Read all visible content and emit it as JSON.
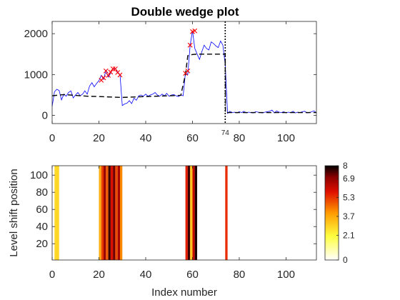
{
  "chart_data": [
    {
      "type": "line",
      "title": "Double wedge plot",
      "xlabel": "",
      "ylabel": "",
      "xlim": [
        0,
        113
      ],
      "ylim": [
        -200,
        2300
      ],
      "xticks": [
        "0",
        "20",
        "40",
        "60",
        "80",
        "100"
      ],
      "yticks": [
        "0",
        "1000",
        "2000"
      ],
      "change_point": {
        "x": 74,
        "label": "74"
      },
      "series": [
        {
          "style": "blue-line",
          "color": "#0000ff",
          "x": [
            0,
            1,
            2,
            3,
            4,
            5,
            6,
            7,
            8,
            9,
            10,
            11,
            12,
            13,
            14,
            15,
            16,
            17,
            18,
            19,
            20,
            21,
            22,
            23,
            24,
            25,
            26,
            27,
            28,
            29,
            30,
            31,
            32,
            33,
            34,
            35,
            36,
            37,
            38,
            39,
            40,
            41,
            42,
            43,
            44,
            45,
            46,
            47,
            48,
            49,
            50,
            51,
            52,
            53,
            54,
            55,
            56,
            57,
            58,
            59,
            60,
            61,
            62,
            63,
            64,
            65,
            66,
            67,
            68,
            69,
            70,
            71,
            72,
            73,
            74,
            75,
            76,
            77,
            78,
            79,
            80,
            81,
            82,
            83,
            84,
            85,
            86,
            87,
            88,
            89,
            90,
            91,
            92,
            93,
            94,
            95,
            96,
            97,
            98,
            99,
            100,
            101,
            102,
            103,
            104,
            105,
            106,
            107,
            108,
            109,
            110,
            111,
            112,
            113
          ],
          "values": [
            220,
            580,
            640,
            610,
            380,
            520,
            470,
            560,
            600,
            430,
            500,
            560,
            480,
            520,
            600,
            520,
            720,
            800,
            700,
            780,
            850,
            980,
            880,
            1100,
            940,
            1030,
            1140,
            1150,
            1060,
            1000,
            240,
            280,
            300,
            360,
            290,
            420,
            370,
            480,
            500,
            470,
            520,
            470,
            500,
            520,
            560,
            500,
            470,
            520,
            480,
            540,
            470,
            500,
            510,
            480,
            460,
            500,
            480,
            1040,
            1000,
            1720,
            2070,
            1640,
            1500,
            1370,
            1560,
            1720,
            1640,
            1600,
            1800,
            1760,
            1700,
            1660,
            1820,
            1720,
            1250,
            50,
            100,
            70,
            80,
            60,
            90,
            70,
            100,
            60,
            80,
            70,
            60,
            90,
            80,
            70,
            60,
            80,
            90,
            100,
            130,
            60,
            110,
            80,
            70,
            90,
            60,
            80,
            70,
            100,
            60,
            80,
            70,
            90,
            100,
            60,
            70,
            90,
            110,
            60
          ]
        },
        {
          "style": "black-dashed",
          "color": "#000000",
          "x": [
            0,
            5,
            10,
            15,
            20,
            25,
            30,
            35,
            40,
            45,
            50,
            55,
            57,
            58,
            60,
            62,
            65,
            70,
            74,
            74.1,
            75,
            80,
            85,
            90,
            95,
            100,
            105,
            110,
            113
          ],
          "values": [
            480,
            510,
            490,
            470,
            460,
            450,
            440,
            450,
            460,
            470,
            480,
            490,
            1000,
            1460,
            1490,
            1500,
            1500,
            1500,
            1500,
            60,
            70,
            70,
            70,
            70,
            70,
            70,
            70,
            70,
            70
          ]
        },
        {
          "style": "red-x-markers",
          "color": "#ff0000",
          "x": [
            21,
            22,
            23,
            24,
            25,
            26,
            27,
            28,
            29,
            57,
            58,
            59,
            60,
            61
          ],
          "values": [
            860,
            920,
            1090,
            980,
            1060,
            1140,
            1140,
            1050,
            990,
            1030,
            1090,
            1720,
            2050,
            2070
          ]
        }
      ]
    },
    {
      "type": "heatmap",
      "title": "",
      "xlabel": "Index number",
      "ylabel": "Level shift position",
      "xlim": [
        0,
        113
      ],
      "ylim": [
        1,
        111
      ],
      "xticks": [
        "0",
        "20",
        "40",
        "60",
        "80",
        "100"
      ],
      "yticks": [
        "20",
        "40",
        "60",
        "80",
        "100"
      ],
      "colorbar": {
        "min": 0,
        "max": 8,
        "ticks": [
          "8",
          "6.9",
          "5.3",
          "3.7",
          "2.1",
          "0"
        ],
        "colormap": "hot-reversed"
      },
      "columns": [
        {
          "x0": 1,
          "x1": 3,
          "value": 2.8
        },
        {
          "x0": 20,
          "x1": 21,
          "value": 3.6
        },
        {
          "x0": 21,
          "x1": 22,
          "value": 5.2
        },
        {
          "x0": 22,
          "x1": 23,
          "value": 6.8
        },
        {
          "x0": 23,
          "x1": 24,
          "value": 4.8
        },
        {
          "x0": 24,
          "x1": 25,
          "value": 7.6
        },
        {
          "x0": 25,
          "x1": 26,
          "value": 5.8
        },
        {
          "x0": 26,
          "x1": 27,
          "value": 7.2
        },
        {
          "x0": 27,
          "x1": 28,
          "value": 5.0
        },
        {
          "x0": 28,
          "x1": 29,
          "value": 6.6
        },
        {
          "x0": 29,
          "x1": 30,
          "value": 4.2
        },
        {
          "x0": 57,
          "x1": 58,
          "value": 5.6
        },
        {
          "x0": 58,
          "x1": 59,
          "value": 7.6
        },
        {
          "x0": 59,
          "x1": 60,
          "value": 3.2
        },
        {
          "x0": 60,
          "x1": 61,
          "value": 6.2
        },
        {
          "x0": 61,
          "x1": 62,
          "value": 7.8
        },
        {
          "x0": 74,
          "x1": 75,
          "value": 5.4
        }
      ]
    }
  ]
}
